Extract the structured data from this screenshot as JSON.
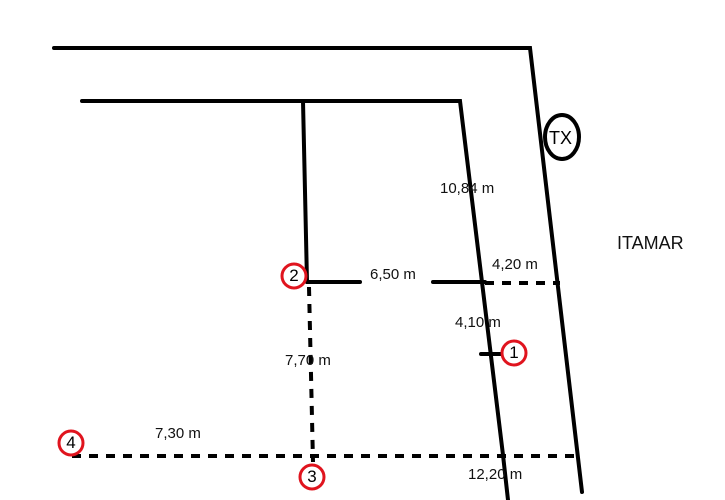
{
  "colors": {
    "line": "#000000",
    "marker_ring": "#e0141e",
    "background": "#ffffff"
  },
  "measurements": {
    "m1084": "10,84 m",
    "m650": "6,50 m",
    "m420": "4,20 m",
    "m410": "4,10 m",
    "m770": "7,70 m",
    "m730": "7,30 m",
    "m1220": "12,20 m"
  },
  "street_name": "ITAMAR",
  "tx_label": "TX",
  "points": {
    "p1": "1",
    "p2": "2",
    "p3": "3",
    "p4": "4"
  }
}
